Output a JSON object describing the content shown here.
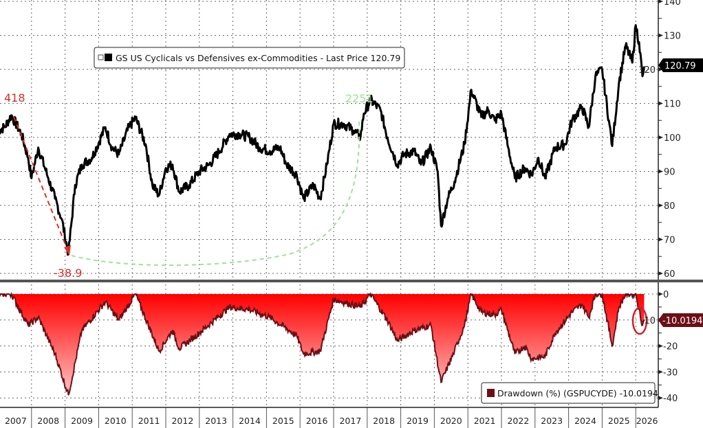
{
  "chart_data": [
    {
      "type": "line",
      "legend": "GS US Cyclicals vs Defensives ex-Commodities - Last Price 120.79",
      "last_value_label": "120.79",
      "color": "#000000",
      "ylim": [
        60,
        140
      ],
      "yticks": [
        "140",
        "130",
        "120",
        "110",
        "100",
        "90",
        "80",
        "70",
        "60"
      ],
      "grid": true,
      "legend_placement": "top-center",
      "annotations": {
        "peak_label": "418",
        "peak_color": "#d0302a",
        "trough_label": "-38.9",
        "trough_color": "#d0302a",
        "recovery_label": "2251",
        "recovery_color": "#9ee29a"
      },
      "x": [
        2007.0,
        2007.2,
        2007.4,
        2007.7,
        2007.9,
        2008.0,
        2008.2,
        2008.5,
        2008.7,
        2008.9,
        2009.1,
        2009.3,
        2009.5,
        2009.8,
        2010.2,
        2010.4,
        2010.6,
        2010.9,
        2011.1,
        2011.4,
        2011.6,
        2011.8,
        2012.0,
        2012.2,
        2012.4,
        2012.7,
        2013.0,
        2013.3,
        2013.6,
        2013.9,
        2014.2,
        2014.5,
        2014.8,
        2015.1,
        2015.4,
        2015.6,
        2015.9,
        2016.1,
        2016.4,
        2016.6,
        2016.8,
        2017.0,
        2017.3,
        2017.6,
        2017.8,
        2017.9,
        2018.1,
        2018.4,
        2018.6,
        2018.9,
        2019.1,
        2019.4,
        2019.6,
        2019.9,
        2020.1,
        2020.2,
        2020.4,
        2020.6,
        2020.9,
        2021.1,
        2021.4,
        2021.6,
        2021.8,
        2022.0,
        2022.2,
        2022.4,
        2022.7,
        2022.9,
        2023.1,
        2023.3,
        2023.6,
        2023.9,
        2024.1,
        2024.4,
        2024.6,
        2024.8,
        2025.0,
        2025.2,
        2025.3,
        2025.5,
        2025.7,
        2025.9,
        2026.0,
        2026.1,
        2026.2,
        2026.25
      ],
      "values": [
        102,
        103,
        106.5,
        101,
        94,
        88,
        97,
        88,
        82,
        76,
        65.7,
        86,
        92,
        94,
        103,
        97,
        95,
        103,
        105.7,
        98,
        86,
        83,
        91,
        92,
        84,
        86,
        90,
        92,
        96,
        101,
        101,
        100,
        97,
        96,
        97,
        92,
        89,
        82,
        86,
        82,
        92,
        104,
        104,
        102,
        100,
        107,
        111,
        108,
        100,
        92,
        95,
        96,
        92,
        97,
        90,
        74,
        82,
        87,
        98,
        114,
        106,
        108,
        105,
        107,
        97,
        88,
        91,
        89,
        94,
        88,
        97,
        98,
        105,
        109,
        103,
        118,
        120,
        105,
        97.5,
        116,
        127,
        122,
        133,
        128,
        118,
        120.79
      ]
    },
    {
      "type": "area",
      "legend": "Drawdown (%) (GSPUCYDE) -10.0194",
      "last_value_label": "-10.0194",
      "color": "#6b0f16",
      "fill_color": "#ff1a1a",
      "ylim": [
        -40,
        0
      ],
      "yticks": [
        "0",
        "-10",
        "-20",
        "-30",
        "-40"
      ],
      "grid": true,
      "legend_placement": "bottom-right",
      "highlight_circle_color": "#d0202a",
      "x": [
        2007.0,
        2007.4,
        2007.9,
        2008.2,
        2008.7,
        2009.1,
        2009.5,
        2010.2,
        2010.6,
        2011.1,
        2011.8,
        2012.2,
        2012.4,
        2013.0,
        2013.9,
        2014.5,
        2015.1,
        2015.9,
        2016.1,
        2016.6,
        2017.0,
        2017.8,
        2018.1,
        2018.6,
        2018.9,
        2019.4,
        2019.9,
        2020.2,
        2020.6,
        2020.9,
        2021.1,
        2021.4,
        2021.8,
        2022.0,
        2022.4,
        2022.7,
        2022.9,
        2023.3,
        2023.6,
        2024.1,
        2024.4,
        2024.6,
        2024.8,
        2025.0,
        2025.3,
        2025.5,
        2025.7,
        2026.0,
        2026.2,
        2026.25
      ],
      "values": [
        0,
        0,
        -12,
        -9,
        -23,
        -38.9,
        -14,
        -3,
        -10,
        0,
        -22,
        -14,
        -21,
        -15,
        -5,
        -6,
        -9,
        -16,
        -23,
        -22,
        -2,
        -5,
        0,
        -10,
        -18,
        -14,
        -12,
        -34,
        -22,
        -12,
        0,
        -7,
        -8,
        -6,
        -23,
        -20,
        -25,
        -24,
        -15,
        -7,
        -4,
        -9,
        0,
        0,
        -20,
        -5,
        0,
        0,
        -12,
        -10.0194
      ]
    }
  ],
  "x_axis": {
    "labels": [
      "2007",
      "2008",
      "2009",
      "2010",
      "2011",
      "2012",
      "2013",
      "2014",
      "2015",
      "2016",
      "2017",
      "2018",
      "2019",
      "2020",
      "2021",
      "2022",
      "2023",
      "2024",
      "2025",
      "2026"
    ]
  }
}
